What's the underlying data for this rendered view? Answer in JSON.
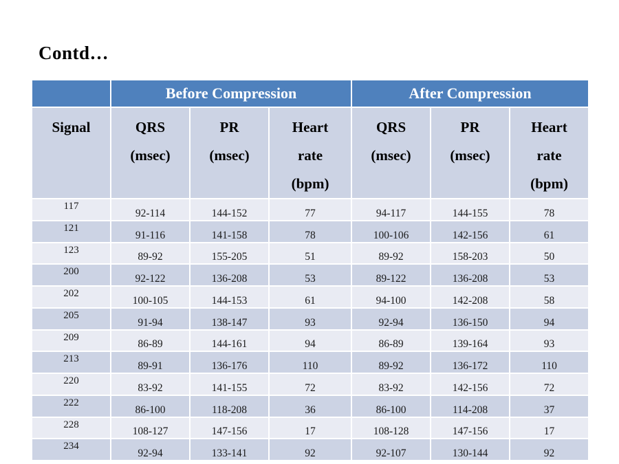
{
  "slide": {
    "title": "Contd…"
  },
  "colors": {
    "header_blue": "#4f81bd",
    "row_light": "#e9ebf3",
    "row_dark": "#ccd3e4",
    "header_text": "#ffffff",
    "body_text": "#1a1a1a"
  },
  "table": {
    "group_headers": [
      {
        "label": "",
        "colspan": 1
      },
      {
        "label": "Before Compression",
        "colspan": 3
      },
      {
        "label": "After Compression",
        "colspan": 3
      }
    ],
    "column_headers": [
      {
        "lines": [
          "Signal"
        ]
      },
      {
        "lines": [
          "QRS",
          "(msec)"
        ]
      },
      {
        "lines": [
          "PR",
          "(msec)"
        ]
      },
      {
        "lines": [
          "Heart",
          "rate",
          "(bpm)"
        ]
      },
      {
        "lines": [
          "QRS",
          "(msec)"
        ]
      },
      {
        "lines": [
          "PR",
          "(msec)"
        ]
      },
      {
        "lines": [
          "Heart",
          "rate",
          "(bpm)"
        ]
      }
    ],
    "rows": [
      [
        "117",
        "92-114",
        "144-152",
        "77",
        "94-117",
        "144-155",
        "78"
      ],
      [
        "121",
        "91-116",
        "141-158",
        "78",
        "100-106",
        "142-156",
        "61"
      ],
      [
        "123",
        "89-92",
        "155-205",
        "51",
        "89-92",
        "158-203",
        "50"
      ],
      [
        "200",
        "92-122",
        "136-208",
        "53",
        "89-122",
        "136-208",
        "53"
      ],
      [
        "202",
        "100-105",
        "144-153",
        "61",
        "94-100",
        "142-208",
        "58"
      ],
      [
        "205",
        "91-94",
        "138-147",
        "93",
        "92-94",
        "136-150",
        "94"
      ],
      [
        "209",
        "86-89",
        "144-161",
        "94",
        "86-89",
        "139-164",
        "93"
      ],
      [
        "213",
        "89-91",
        "136-176",
        "110",
        "89-92",
        "136-172",
        "110"
      ],
      [
        "220",
        "83-92",
        "141-155",
        "72",
        "83-92",
        "142-156",
        "72"
      ],
      [
        "222",
        "86-100",
        "118-208",
        "36",
        "86-100",
        "114-208",
        "37"
      ],
      [
        "228",
        "108-127",
        "147-156",
        "17",
        "108-128",
        "147-156",
        "17"
      ],
      [
        "234",
        "92-94",
        "133-141",
        "92",
        "92-107",
        "130-144",
        "92"
      ]
    ]
  }
}
